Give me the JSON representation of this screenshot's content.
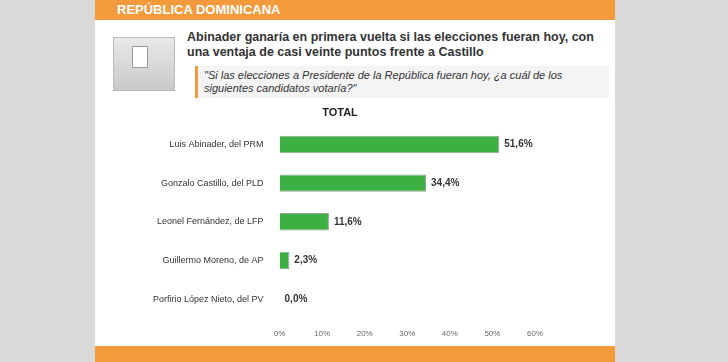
{
  "header": "REPÚBLICA DOMINICANA",
  "headline": "Abinader ganaría en primera vuelta si las elecciones fueran hoy, con una ventaja de casi veinte puntos frente a Castillo",
  "question": "\"Si las elecciones a Presidente de la República fueran hoy, ¿a cuál de los siguientes candidatos votaría?\"",
  "chart_data": {
    "type": "bar",
    "orientation": "horizontal",
    "title": "TOTAL",
    "categories": [
      "Luis Abinader, del PRM",
      "Gonzalo Castillo, del PLD",
      "Leonel Fernández, de LFP",
      "Guillermo Moreno, de AP",
      "Porfirio López Nieto, del PV"
    ],
    "values": [
      51.6,
      34.4,
      11.6,
      2.3,
      0.0
    ],
    "value_labels": [
      "51,6%",
      "34,4%",
      "11,6%",
      "2,3%",
      "0,0%"
    ],
    "color": "#3cb043",
    "xlim": [
      0,
      60
    ],
    "xticks": [
      {
        "value": 0,
        "label": "0%"
      },
      {
        "value": 10,
        "label": "10%"
      },
      {
        "value": 20,
        "label": "20%"
      },
      {
        "value": 30,
        "label": "30%"
      },
      {
        "value": 40,
        "label": "40%"
      },
      {
        "value": 50,
        "label": "50%"
      },
      {
        "value": 60,
        "label": "60%"
      }
    ],
    "grid": false,
    "data_labels": true
  }
}
